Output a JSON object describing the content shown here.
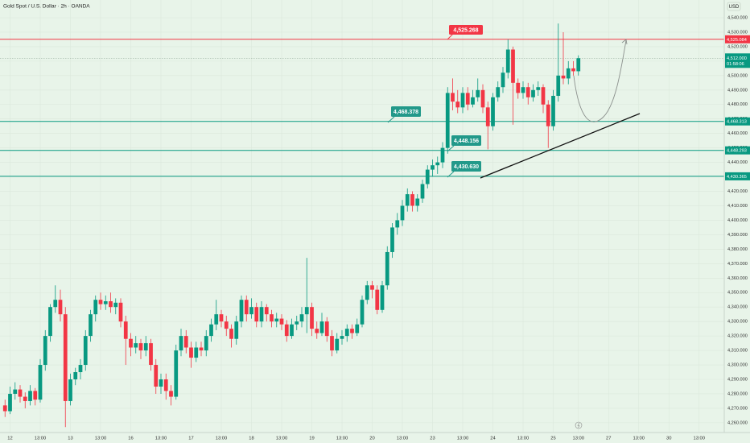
{
  "chart_data": {
    "type": "candlestick",
    "title": "Gold Spot / U.S. Dollar · 2h · OANDA",
    "currency": "USD",
    "up_color": "#089981",
    "down_color": "#f23645",
    "grid": true,
    "xlim": [
      -1,
      143
    ],
    "ylim": [
      4253.25,
      4552.25
    ],
    "xticks": [
      {
        "value": 1,
        "label": "12"
      },
      {
        "value": 7,
        "label": "13:00"
      },
      {
        "value": 13,
        "label": "13"
      },
      {
        "value": 19,
        "label": "13:00"
      },
      {
        "value": 25,
        "label": "16"
      },
      {
        "value": 31,
        "label": "13:00"
      },
      {
        "value": 37,
        "label": "17"
      },
      {
        "value": 43,
        "label": "13:00"
      },
      {
        "value": 49,
        "label": "18"
      },
      {
        "value": 55,
        "label": "13:00"
      },
      {
        "value": 61,
        "label": "19"
      },
      {
        "value": 67,
        "label": "13:00"
      },
      {
        "value": 73,
        "label": "20"
      },
      {
        "value": 79,
        "label": "13:00"
      },
      {
        "value": 85,
        "label": "23"
      },
      {
        "value": 91,
        "label": "13:00"
      },
      {
        "value": 97,
        "label": "24"
      },
      {
        "value": 103,
        "label": "13:00"
      },
      {
        "value": 109,
        "label": "25"
      },
      {
        "value": 114,
        "label": "13:00"
      },
      {
        "value": 120,
        "label": "27"
      },
      {
        "value": 126,
        "label": "13:00"
      },
      {
        "value": 132,
        "label": "30"
      },
      {
        "value": 138,
        "label": "13:00"
      }
    ],
    "yticks": [
      {
        "value": 4260,
        "label": "4,260.000"
      },
      {
        "value": 4270,
        "label": "4,270.000"
      },
      {
        "value": 4280,
        "label": "4,280.000"
      },
      {
        "value": 4290,
        "label": "4,290.000"
      },
      {
        "value": 4300,
        "label": "4,300.000"
      },
      {
        "value": 4310,
        "label": "4,310.000"
      },
      {
        "value": 4320,
        "label": "4,320.000"
      },
      {
        "value": 4330,
        "label": "4,330.000"
      },
      {
        "value": 4340,
        "label": "4,340.000"
      },
      {
        "value": 4350,
        "label": "4,350.000"
      },
      {
        "value": 4360,
        "label": "4,360.000"
      },
      {
        "value": 4370,
        "label": "4,370.000"
      },
      {
        "value": 4380,
        "label": "4,380.000"
      },
      {
        "value": 4390,
        "label": "4,390.000"
      },
      {
        "value": 4400,
        "label": "4,400.000"
      },
      {
        "value": 4410,
        "label": "4,410.000"
      },
      {
        "value": 4420,
        "label": "4,420.000"
      },
      {
        "value": 4430,
        "label": "4,430.000"
      },
      {
        "value": 4440,
        "label": "4,440.000"
      },
      {
        "value": 4450,
        "label": "4,450.000"
      },
      {
        "value": 4460,
        "label": "4,460.000"
      },
      {
        "value": 4470,
        "label": "4,470.000"
      },
      {
        "value": 4480,
        "label": "4,480.000"
      },
      {
        "value": 4490,
        "label": "4,490.000"
      },
      {
        "value": 4500,
        "label": "4,500.000"
      },
      {
        "value": 4510,
        "label": "4,510.000"
      },
      {
        "value": 4520,
        "label": "4,520.000"
      },
      {
        "value": 4530,
        "label": "4,530.000"
      },
      {
        "value": 4540,
        "label": "4,540.000"
      }
    ],
    "levels": [
      {
        "value": 4525.084,
        "label": "4,525.084",
        "color": "#f23645"
      },
      {
        "value": 4468.313,
        "label": "4,468.313",
        "color": "#089981"
      },
      {
        "value": 4448.293,
        "label": "4,448.293",
        "color": "#089981"
      },
      {
        "value": 4430.365,
        "label": "4,430.365",
        "color": "#089981"
      }
    ],
    "last_price": {
      "value": 4512,
      "label": "4,512.000",
      "countdown": "01:58:06",
      "color": "#089981"
    },
    "callouts": [
      {
        "label": "4,525.268",
        "color": "#f23645"
      },
      {
        "label": "4,468.378",
        "color": "#22998a"
      },
      {
        "label": "4,448.156",
        "color": "#22998a"
      },
      {
        "label": "4,430.630",
        "color": "#22998a"
      }
    ],
    "ohlc": [
      [
        4272,
        4276,
        4264,
        4268
      ],
      [
        4268,
        4285,
        4266,
        4280
      ],
      [
        4280,
        4288,
        4276,
        4283
      ],
      [
        4283,
        4286,
        4274,
        4278
      ],
      [
        4278,
        4281,
        4270,
        4275
      ],
      [
        4275,
        4286,
        4272,
        4282
      ],
      [
        4282,
        4284,
        4272,
        4276
      ],
      [
        4276,
        4304,
        4274,
        4300
      ],
      [
        4300,
        4324,
        4296,
        4320
      ],
      [
        4320,
        4342,
        4316,
        4340
      ],
      [
        4340,
        4355,
        4336,
        4345
      ],
      [
        4345,
        4352,
        4330,
        4335
      ],
      [
        4335,
        4340,
        4257,
        4275
      ],
      [
        4275,
        4294,
        4272,
        4290
      ],
      [
        4290,
        4298,
        4286,
        4295
      ],
      [
        4295,
        4304,
        4290,
        4300
      ],
      [
        4300,
        4324,
        4296,
        4320
      ],
      [
        4320,
        4338,
        4316,
        4335
      ],
      [
        4335,
        4348,
        4330,
        4345
      ],
      [
        4345,
        4350,
        4338,
        4342
      ],
      [
        4342,
        4348,
        4338,
        4344
      ],
      [
        4344,
        4350,
        4336,
        4340
      ],
      [
        4340,
        4346,
        4335,
        4343
      ],
      [
        4343,
        4346,
        4326,
        4330
      ],
      [
        4330,
        4334,
        4300,
        4318
      ],
      [
        4318,
        4322,
        4306,
        4312
      ],
      [
        4312,
        4320,
        4308,
        4315
      ],
      [
        4315,
        4318,
        4304,
        4310
      ],
      [
        4310,
        4320,
        4306,
        4315
      ],
      [
        4315,
        4318,
        4296,
        4300
      ],
      [
        4300,
        4304,
        4280,
        4285
      ],
      [
        4285,
        4294,
        4280,
        4290
      ],
      [
        4290,
        4294,
        4276,
        4282
      ],
      [
        4282,
        4286,
        4272,
        4278
      ],
      [
        4278,
        4314,
        4276,
        4310
      ],
      [
        4310,
        4325,
        4306,
        4320
      ],
      [
        4320,
        4324,
        4308,
        4312
      ],
      [
        4312,
        4316,
        4298,
        4305
      ],
      [
        4305,
        4316,
        4302,
        4312
      ],
      [
        4312,
        4316,
        4306,
        4310
      ],
      [
        4310,
        4324,
        4306,
        4320
      ],
      [
        4320,
        4332,
        4316,
        4328
      ],
      [
        4328,
        4345,
        4324,
        4335
      ],
      [
        4335,
        4338,
        4326,
        4330
      ],
      [
        4330,
        4334,
        4320,
        4325
      ],
      [
        4325,
        4328,
        4312,
        4318
      ],
      [
        4318,
        4334,
        4314,
        4330
      ],
      [
        4330,
        4348,
        4326,
        4345
      ],
      [
        4345,
        4348,
        4330,
        4335
      ],
      [
        4335,
        4346,
        4332,
        4340
      ],
      [
        4340,
        4343,
        4326,
        4330
      ],
      [
        4330,
        4344,
        4326,
        4340
      ],
      [
        4340,
        4342,
        4330,
        4335
      ],
      [
        4335,
        4338,
        4326,
        4330
      ],
      [
        4330,
        4336,
        4326,
        4332
      ],
      [
        4332,
        4335,
        4324,
        4328
      ],
      [
        4328,
        4331,
        4316,
        4320
      ],
      [
        4320,
        4332,
        4318,
        4328
      ],
      [
        4328,
        4334,
        4324,
        4330
      ],
      [
        4330,
        4340,
        4326,
        4335
      ],
      [
        4335,
        4374,
        4322,
        4340
      ],
      [
        4340,
        4343,
        4320,
        4325
      ],
      [
        4325,
        4330,
        4318,
        4322
      ],
      [
        4322,
        4336,
        4320,
        4330
      ],
      [
        4330,
        4333,
        4316,
        4320
      ],
      [
        4320,
        4324,
        4306,
        4310
      ],
      [
        4310,
        4322,
        4308,
        4318
      ],
      [
        4318,
        4324,
        4314,
        4320
      ],
      [
        4320,
        4328,
        4316,
        4325
      ],
      [
        4325,
        4328,
        4318,
        4322
      ],
      [
        4322,
        4332,
        4320,
        4328
      ],
      [
        4328,
        4348,
        4326,
        4345
      ],
      [
        4345,
        4358,
        4342,
        4355
      ],
      [
        4355,
        4358,
        4346,
        4352
      ],
      [
        4352,
        4355,
        4335,
        4338
      ],
      [
        4338,
        4358,
        4336,
        4355
      ],
      [
        4355,
        4382,
        4352,
        4378
      ],
      [
        4378,
        4398,
        4374,
        4395
      ],
      [
        4395,
        4405,
        4390,
        4400
      ],
      [
        4400,
        4414,
        4396,
        4410
      ],
      [
        4410,
        4422,
        4406,
        4418
      ],
      [
        4418,
        4420,
        4406,
        4410
      ],
      [
        4410,
        4418,
        4406,
        4415
      ],
      [
        4415,
        4428,
        4412,
        4425
      ],
      [
        4425,
        4438,
        4422,
        4435
      ],
      [
        4435,
        4442,
        4430,
        4438
      ],
      [
        4438,
        4444,
        4432,
        4440
      ],
      [
        4440,
        4454,
        4436,
        4450
      ],
      [
        4450,
        4492,
        4446,
        4488
      ],
      [
        4488,
        4498,
        4476,
        4482
      ],
      [
        4482,
        4490,
        4474,
        4478
      ],
      [
        4478,
        4492,
        4474,
        4488
      ],
      [
        4488,
        4492,
        4476,
        4480
      ],
      [
        4480,
        4490,
        4478,
        4485
      ],
      [
        4485,
        4498,
        4482,
        4490
      ],
      [
        4490,
        4494,
        4474,
        4478
      ],
      [
        4478,
        4482,
        4449,
        4465
      ],
      [
        4465,
        4488,
        4462,
        4485
      ],
      [
        4485,
        4496,
        4482,
        4492
      ],
      [
        4492,
        4506,
        4488,
        4502
      ],
      [
        4502,
        4525,
        4498,
        4518
      ],
      [
        4518,
        4520,
        4466,
        4495
      ],
      [
        4495,
        4498,
        4484,
        4488
      ],
      [
        4488,
        4496,
        4484,
        4492
      ],
      [
        4492,
        4495,
        4480,
        4485
      ],
      [
        4485,
        4494,
        4482,
        4490
      ],
      [
        4490,
        4496,
        4486,
        4492
      ],
      [
        4492,
        4494,
        4474,
        4480
      ],
      [
        4480,
        4483,
        4450,
        4465
      ],
      [
        4465,
        4490,
        4462,
        4486
      ],
      [
        4486,
        4536,
        4482,
        4500
      ],
      [
        4500,
        4530,
        4494,
        4498
      ],
      [
        4498,
        4510,
        4494,
        4505
      ],
      [
        4505,
        4510,
        4500,
        4503
      ],
      [
        4503,
        4514,
        4500,
        4512
      ]
    ]
  }
}
